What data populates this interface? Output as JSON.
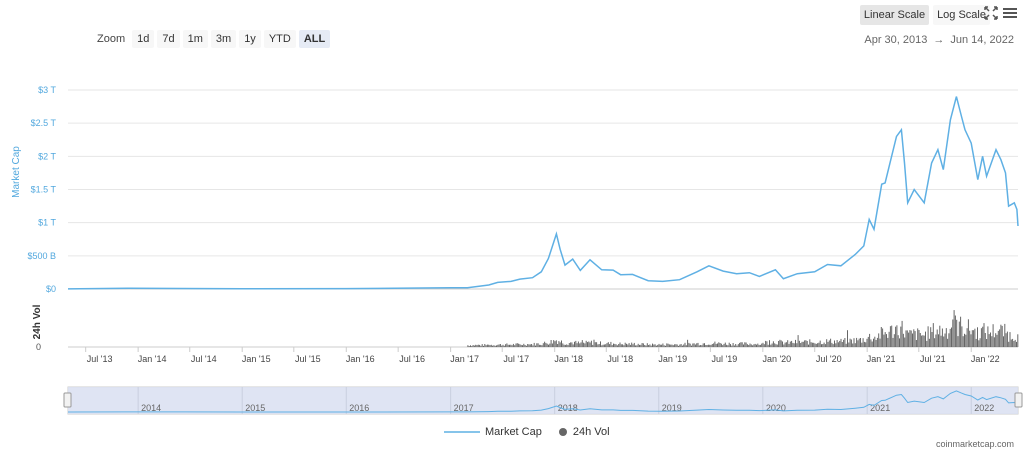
{
  "zoom": {
    "label": "Zoom",
    "buttons": [
      "1d",
      "7d",
      "1m",
      "3m",
      "1y",
      "YTD",
      "ALL"
    ],
    "active": "ALL"
  },
  "scale": {
    "linear_label": "Linear Scale",
    "log_label": "Log Scale",
    "active": "linear"
  },
  "range": {
    "from": "Apr 30, 2013",
    "to": "Jun 14, 2022",
    "arrow": "→"
  },
  "icons": {
    "fullscreen": "fullscreen-icon",
    "menu": "hamburger-menu-icon"
  },
  "colors": {
    "market_cap": "#5fb0e4",
    "volume": "#666666",
    "navigator_fill": "#dbe1f1",
    "axis_label": "#52a8de"
  },
  "legend": {
    "market_cap": "Market Cap",
    "volume": "24h Vol"
  },
  "credit": "coinmarketcap.com",
  "chart_data": {
    "type": "line",
    "x_unit": "date",
    "y_axis": {
      "label": "Market Cap",
      "ticks": [
        "$0",
        "$500 B",
        "$1 T",
        "$1.5 T",
        "$2 T",
        "$2.5 T",
        "$3 T"
      ],
      "tick_values": [
        0,
        500,
        1000,
        1500,
        2000,
        2500,
        3000
      ],
      "unit": "USD billions",
      "ylim": [
        0,
        3000
      ]
    },
    "volume_axis": {
      "label": "24h Vol",
      "ticks": [
        "0"
      ]
    },
    "x_ticks": [
      "Jul '13",
      "Jan '14",
      "Jul '14",
      "Jan '15",
      "Jul '15",
      "Jan '16",
      "Jul '16",
      "Jan '17",
      "Jul '17",
      "Jan '18",
      "Jul '18",
      "Jan '19",
      "Jul '19",
      "Jan '20",
      "Jul '20",
      "Jan '21",
      "Jul '21",
      "Jan '22"
    ],
    "x_tick_dates": [
      "2013-07-01",
      "2014-01-01",
      "2014-07-01",
      "2015-01-01",
      "2015-07-01",
      "2016-01-01",
      "2016-07-01",
      "2017-01-01",
      "2017-07-01",
      "2018-01-01",
      "2018-07-01",
      "2019-01-01",
      "2019-07-01",
      "2020-01-01",
      "2020-07-01",
      "2021-01-01",
      "2021-07-01",
      "2022-01-01"
    ],
    "xlim": [
      "2013-04-30",
      "2022-06-14"
    ],
    "navigator_years": [
      "2014",
      "2015",
      "2016",
      "2017",
      "2018",
      "2019",
      "2020",
      "2021",
      "2022"
    ],
    "navigator_year_dates": [
      "2014-01-01",
      "2015-01-01",
      "2016-01-01",
      "2017-01-01",
      "2018-01-01",
      "2019-01-01",
      "2020-01-01",
      "2021-01-01",
      "2022-01-01"
    ],
    "series": [
      {
        "name": "Market Cap",
        "x": [
          "2013-04-30",
          "2013-11-30",
          "2014-06-01",
          "2015-01-01",
          "2016-01-01",
          "2017-01-01",
          "2017-03-01",
          "2017-05-15",
          "2017-06-15",
          "2017-08-01",
          "2017-09-01",
          "2017-10-15",
          "2017-11-15",
          "2017-12-10",
          "2018-01-07",
          "2018-01-20",
          "2018-02-06",
          "2018-03-05",
          "2018-04-01",
          "2018-05-05",
          "2018-06-15",
          "2018-07-25",
          "2018-08-20",
          "2018-10-01",
          "2018-11-25",
          "2019-01-15",
          "2019-03-15",
          "2019-05-15",
          "2019-06-26",
          "2019-08-15",
          "2019-10-01",
          "2019-11-15",
          "2019-12-20",
          "2020-02-14",
          "2020-03-13",
          "2020-05-01",
          "2020-07-01",
          "2020-08-15",
          "2020-10-01",
          "2020-11-20",
          "2020-12-20",
          "2021-01-08",
          "2021-01-25",
          "2021-02-21",
          "2021-03-05",
          "2021-04-14",
          "2021-05-01",
          "2021-05-12",
          "2021-05-23",
          "2021-06-15",
          "2021-07-20",
          "2021-08-15",
          "2021-09-06",
          "2021-09-25",
          "2021-10-20",
          "2021-11-10",
          "2021-11-28",
          "2021-12-10",
          "2022-01-01",
          "2022-01-24",
          "2022-02-10",
          "2022-02-24",
          "2022-03-29",
          "2022-04-15",
          "2022-05-01",
          "2022-05-12",
          "2022-06-01",
          "2022-06-10",
          "2022-06-14"
        ],
        "y": [
          2,
          12,
          8,
          5,
          6,
          18,
          20,
          60,
          100,
          115,
          150,
          170,
          260,
          460,
          830,
          600,
          360,
          450,
          280,
          440,
          290,
          285,
          215,
          220,
          125,
          115,
          140,
          260,
          350,
          270,
          230,
          245,
          190,
          290,
          155,
          230,
          260,
          370,
          350,
          520,
          650,
          1050,
          900,
          1580,
          1600,
          2300,
          2400,
          1900,
          1300,
          1500,
          1300,
          1900,
          2100,
          1800,
          2550,
          2900,
          2600,
          2400,
          2200,
          1650,
          2000,
          1700,
          2100,
          1950,
          1750,
          1250,
          1300,
          1200,
          950
        ]
      }
    ],
    "volume_note": "24h Vol shown as dense bars; values unlabeled, increasing from 2017 with peaks in 2021"
  }
}
